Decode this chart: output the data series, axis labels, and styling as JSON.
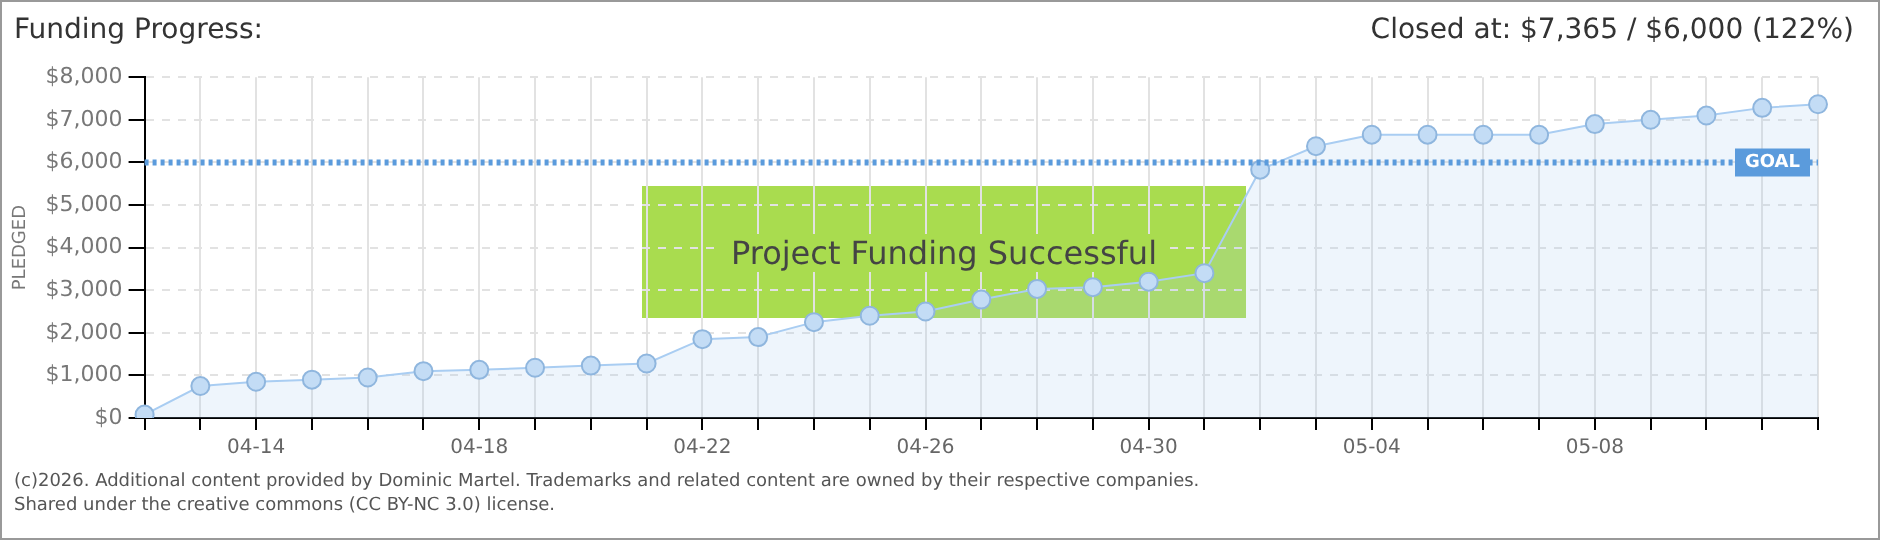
{
  "chart_data": {
    "type": "area",
    "title": "Funding Progress:",
    "subtitle": "Closed at: $7,365 / $6,000 (122%)",
    "ylabel": "PLEDGED",
    "categories": [
      null,
      null,
      "04-14",
      null,
      null,
      null,
      "04-18",
      null,
      null,
      null,
      "04-22",
      null,
      null,
      null,
      "04-26",
      null,
      null,
      null,
      "04-30",
      null,
      null,
      null,
      "05-04",
      null,
      null,
      null,
      "05-08",
      null,
      null,
      null,
      null
    ],
    "series": [
      {
        "color": "#a9cdf2",
        "values": [
          80,
          750,
          850,
          900,
          950,
          1100,
          1130,
          1180,
          1230,
          1280,
          1850,
          1900,
          2250,
          2400,
          2500,
          2780,
          3030,
          3070,
          3200,
          3400,
          5830,
          6380,
          6650,
          6650,
          6650,
          6650,
          6900,
          7000,
          7100,
          7280,
          7365
        ]
      }
    ],
    "ylim": [
      0,
      8000
    ],
    "yticks": [
      {
        "value": 0,
        "label": "$0"
      },
      {
        "value": 1000,
        "label": "$1,000"
      },
      {
        "value": 2000,
        "label": "$2,000"
      },
      {
        "value": 3000,
        "label": "$3,000"
      },
      {
        "value": 4000,
        "label": "$4,000"
      },
      {
        "value": 5000,
        "label": "$5,000"
      },
      {
        "value": 6000,
        "label": "$6,000"
      },
      {
        "value": 7000,
        "label": "$7,000"
      },
      {
        "value": 8000,
        "label": "$8,000"
      }
    ],
    "grid": true,
    "legend": false,
    "marker": "circle",
    "ref_lines": [
      {
        "axis": "y",
        "value": 6000,
        "label": "GOAL",
        "color": "#5b9bdc",
        "line_style": "dotted"
      }
    ],
    "annotations": [
      "Project Funding Successful",
      "(c)2026. Additional content provided by Dominic Martel. Trademarks and related content are owned by their respective companies.",
      "Shared under the creative commons (CC BY-NC 3.0) license."
    ]
  }
}
